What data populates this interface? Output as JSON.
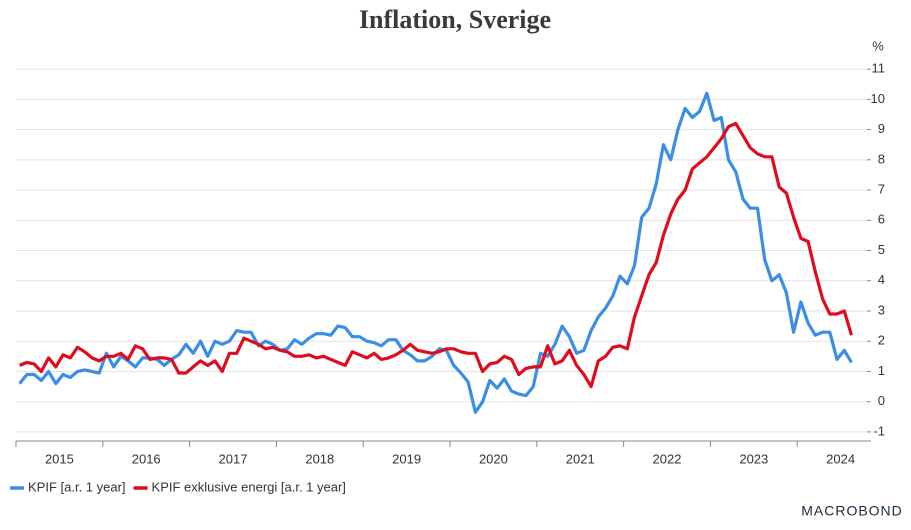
{
  "chart_data": {
    "type": "line",
    "title": "Inflation, Sverige",
    "y_unit": "%",
    "x": [
      2015.042,
      2015.125,
      2015.208,
      2015.292,
      2015.375,
      2015.458,
      2015.542,
      2015.625,
      2015.708,
      2015.792,
      2015.875,
      2015.958,
      2016.042,
      2016.125,
      2016.208,
      2016.292,
      2016.375,
      2016.458,
      2016.542,
      2016.625,
      2016.708,
      2016.792,
      2016.875,
      2016.958,
      2017.042,
      2017.125,
      2017.208,
      2017.292,
      2017.375,
      2017.458,
      2017.542,
      2017.625,
      2017.708,
      2017.792,
      2017.875,
      2017.958,
      2018.042,
      2018.125,
      2018.208,
      2018.292,
      2018.375,
      2018.458,
      2018.542,
      2018.625,
      2018.708,
      2018.792,
      2018.875,
      2018.958,
      2019.042,
      2019.125,
      2019.208,
      2019.292,
      2019.375,
      2019.458,
      2019.542,
      2019.625,
      2019.708,
      2019.792,
      2019.875,
      2019.958,
      2020.042,
      2020.125,
      2020.208,
      2020.292,
      2020.375,
      2020.458,
      2020.542,
      2020.625,
      2020.708,
      2020.792,
      2020.875,
      2020.958,
      2021.042,
      2021.125,
      2021.208,
      2021.292,
      2021.375,
      2021.458,
      2021.542,
      2021.625,
      2021.708,
      2021.792,
      2021.875,
      2021.958,
      2022.042,
      2022.125,
      2022.208,
      2022.292,
      2022.375,
      2022.458,
      2022.542,
      2022.625,
      2022.708,
      2022.792,
      2022.875,
      2022.958,
      2023.042,
      2023.125,
      2023.208,
      2023.292,
      2023.375,
      2023.458,
      2023.542,
      2023.625,
      2023.708,
      2023.792,
      2023.875,
      2023.958,
      2024.042,
      2024.125,
      2024.208,
      2024.292,
      2024.375,
      2024.458,
      2024.542,
      2024.625
    ],
    "series": [
      {
        "name": "KPIF [a.r. 1 year]",
        "color": "#3a8ee6",
        "values": [
          0.6,
          0.9,
          0.9,
          0.7,
          1.0,
          0.6,
          0.9,
          0.8,
          1.0,
          1.05,
          1.0,
          0.95,
          1.6,
          1.15,
          1.5,
          1.35,
          1.15,
          1.45,
          1.45,
          1.4,
          1.2,
          1.4,
          1.55,
          1.9,
          1.6,
          2.0,
          1.5,
          2.0,
          1.9,
          2.0,
          2.35,
          2.3,
          2.3,
          1.85,
          2.0,
          1.9,
          1.7,
          1.75,
          2.05,
          1.9,
          2.1,
          2.25,
          2.25,
          2.2,
          2.5,
          2.45,
          2.15,
          2.15,
          2.0,
          1.95,
          1.85,
          2.05,
          2.05,
          1.7,
          1.55,
          1.35,
          1.35,
          1.5,
          1.75,
          1.7,
          1.2,
          0.95,
          0.65,
          -0.35,
          0.0,
          0.7,
          0.45,
          0.75,
          0.35,
          0.25,
          0.2,
          0.5,
          1.6,
          1.5,
          1.9,
          2.5,
          2.15,
          1.6,
          1.7,
          2.35,
          2.8,
          3.1,
          3.5,
          4.15,
          3.9,
          4.5,
          6.1,
          6.4,
          7.2,
          8.5,
          8.0,
          9.0,
          9.7,
          9.4,
          9.6,
          10.2,
          9.3,
          9.4,
          8.0,
          7.6,
          6.7,
          6.4,
          6.4,
          4.7,
          4.0,
          4.2,
          3.6,
          2.3,
          3.3,
          2.6,
          2.2,
          2.3,
          2.3,
          1.4,
          1.7,
          1.3
        ]
      },
      {
        "name": "KPIF exklusive energi [a.r. 1 year]",
        "color": "#e00b1c",
        "values": [
          1.2,
          1.3,
          1.25,
          1.0,
          1.45,
          1.15,
          1.55,
          1.45,
          1.8,
          1.65,
          1.45,
          1.35,
          1.5,
          1.5,
          1.6,
          1.4,
          1.85,
          1.75,
          1.4,
          1.45,
          1.45,
          1.4,
          0.95,
          0.95,
          1.15,
          1.35,
          1.2,
          1.35,
          1.0,
          1.6,
          1.6,
          2.1,
          2.0,
          1.9,
          1.75,
          1.8,
          1.7,
          1.65,
          1.5,
          1.5,
          1.55,
          1.45,
          1.5,
          1.4,
          1.3,
          1.2,
          1.65,
          1.55,
          1.45,
          1.6,
          1.4,
          1.45,
          1.55,
          1.7,
          1.9,
          1.7,
          1.65,
          1.6,
          1.65,
          1.75,
          1.75,
          1.65,
          1.6,
          1.6,
          1.0,
          1.25,
          1.3,
          1.5,
          1.4,
          0.9,
          1.1,
          1.15,
          1.15,
          1.85,
          1.25,
          1.35,
          1.7,
          1.2,
          0.9,
          0.5,
          1.35,
          1.5,
          1.8,
          1.85,
          1.75,
          2.8,
          3.5,
          4.2,
          4.6,
          5.5,
          6.2,
          6.7,
          7.0,
          7.7,
          7.9,
          8.1,
          8.4,
          8.7,
          9.1,
          9.2,
          8.8,
          8.4,
          8.2,
          8.1,
          8.1,
          7.1,
          6.9,
          6.1,
          5.4,
          5.3,
          4.3,
          3.4,
          2.9,
          2.9,
          3.0,
          2.2
        ]
      }
    ],
    "xlim": [
      2015,
      2024.85
    ],
    "xticks": [
      {
        "value": 2015.5,
        "label": "2015"
      },
      {
        "value": 2016.5,
        "label": "2016"
      },
      {
        "value": 2017.5,
        "label": "2017"
      },
      {
        "value": 2018.5,
        "label": "2018"
      },
      {
        "value": 2019.5,
        "label": "2019"
      },
      {
        "value": 2020.5,
        "label": "2020"
      },
      {
        "value": 2021.5,
        "label": "2021"
      },
      {
        "value": 2022.5,
        "label": "2022"
      },
      {
        "value": 2023.5,
        "label": "2023"
      },
      {
        "value": 2024.5,
        "label": "2024"
      }
    ],
    "ylim": [
      -1.3,
      11.5
    ],
    "yticks": [
      -1,
      0,
      1,
      2,
      3,
      4,
      5,
      6,
      7,
      8,
      9,
      10,
      11
    ],
    "grid": true,
    "legend": "bottom-left",
    "source_logo": "MACROBOND"
  }
}
